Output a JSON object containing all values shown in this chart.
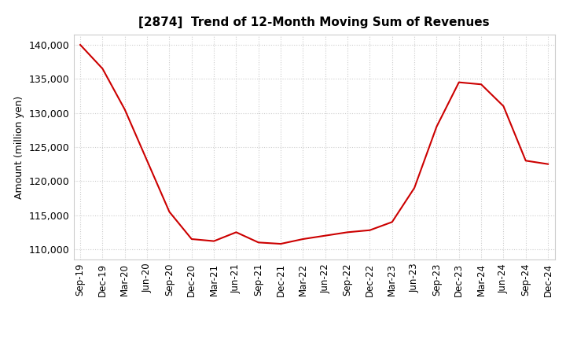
{
  "title": "[2874]  Trend of 12-Month Moving Sum of Revenues",
  "ylabel": "Amount (million yen)",
  "line_color": "#cc0000",
  "background_color": "#ffffff",
  "grid_color": "#cccccc",
  "ylim": [
    108500,
    141500
  ],
  "yticks": [
    110000,
    115000,
    120000,
    125000,
    130000,
    135000,
    140000
  ],
  "x_labels": [
    "Sep-19",
    "Dec-19",
    "Mar-20",
    "Jun-20",
    "Sep-20",
    "Dec-20",
    "Mar-21",
    "Jun-21",
    "Sep-21",
    "Dec-21",
    "Mar-22",
    "Jun-22",
    "Sep-22",
    "Dec-22",
    "Mar-23",
    "Jun-23",
    "Sep-23",
    "Dec-23",
    "Mar-24",
    "Jun-24",
    "Sep-24",
    "Dec-24"
  ],
  "values": [
    140000,
    136500,
    130500,
    123000,
    115500,
    111500,
    111200,
    112500,
    111000,
    110800,
    111500,
    112000,
    112500,
    112800,
    114000,
    119000,
    128000,
    134500,
    134200,
    131000,
    123000,
    122500
  ]
}
